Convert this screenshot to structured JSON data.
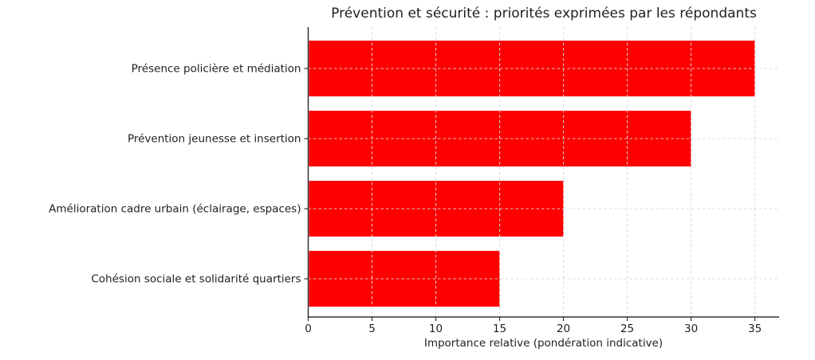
{
  "chart_data": {
    "type": "bar",
    "orientation": "horizontal",
    "title": "Prévention et sécurité : priorités exprimées par les répondants",
    "categories": [
      "Présence policière et médiation",
      "Prévention jeunesse et insertion",
      "Amélioration cadre urbain (éclairage, espaces)",
      "Cohésion sociale et solidarité quartiers"
    ],
    "values": [
      35,
      30,
      20,
      15
    ],
    "xlabel": "Importance relative (pondération indicative)",
    "ylabel": "",
    "xticks": [
      0,
      5,
      10,
      15,
      20,
      25,
      30,
      35
    ],
    "xlim": [
      0,
      36.9
    ],
    "legend": "none",
    "grid": "dashed, drawn above bars, both axes",
    "bar_color": "#ff0000",
    "grid_color": "#d9d9d9",
    "axis_color": "#333333",
    "text_color": "#1f1f1f",
    "background_color": "#ffffff"
  }
}
